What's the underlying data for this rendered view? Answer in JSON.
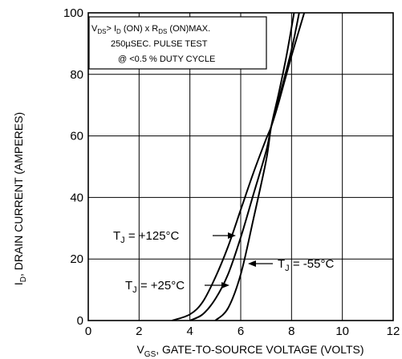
{
  "chart_data": {
    "type": "line",
    "xlabel_main": "V",
    "xlabel_sub": "GS",
    "xlabel_rest": ", GATE-TO-SOURCE VOLTAGE (VOLTS)",
    "ylabel_main": "I",
    "ylabel_sub": "D",
    "ylabel_rest": ", DRAIN CURRENT (AMPERES)",
    "xlim": [
      0,
      12
    ],
    "ylim": [
      0,
      100
    ],
    "x_ticks": [
      0,
      2,
      4,
      6,
      8,
      10,
      12
    ],
    "y_ticks": [
      0,
      20,
      40,
      60,
      80,
      100
    ],
    "x_tick_labels": [
      "0",
      "2",
      "4",
      "6",
      "8",
      "10",
      "12"
    ],
    "y_tick_labels": [
      "0",
      "20",
      "40",
      "60",
      "80",
      "100"
    ],
    "grid": true,
    "conditions": {
      "line1_a": "V",
      "line1_a_sub": "DS",
      "line1_b": "> I",
      "line1_b_sub": "D",
      "line1_c": " (ON) x  R",
      "line1_c_sub": "DS",
      "line1_d": " (ON)MAX.",
      "line2": "250µSEC.  PULSE  TEST",
      "line3": "@  <0.5 %  DUTY  CYCLE"
    },
    "series": [
      {
        "label_main": "T",
        "label_sub": "J",
        "label_rest": " = +125°C",
        "points": [
          [
            3.3,
            0
          ],
          [
            4.0,
            2
          ],
          [
            4.5,
            6
          ],
          [
            5.0,
            14
          ],
          [
            5.5,
            24
          ],
          [
            6.0,
            36
          ],
          [
            6.5,
            48
          ],
          [
            7.0,
            59
          ],
          [
            7.2,
            63
          ],
          [
            7.5,
            71
          ],
          [
            8.0,
            86
          ],
          [
            8.5,
            100
          ]
        ]
      },
      {
        "label_main": "T",
        "label_sub": "J",
        "label_rest": " = +25°C",
        "points": [
          [
            4.0,
            0
          ],
          [
            4.5,
            2
          ],
          [
            5.0,
            7
          ],
          [
            5.5,
            15
          ],
          [
            6.0,
            27
          ],
          [
            6.5,
            41
          ],
          [
            7.0,
            55
          ],
          [
            7.2,
            63
          ],
          [
            7.5,
            72
          ],
          [
            8.0,
            88
          ],
          [
            8.3,
            100
          ]
        ]
      },
      {
        "label_main": "T",
        "label_sub": "J",
        "label_rest": " = -55°C",
        "points": [
          [
            5.0,
            0
          ],
          [
            5.5,
            4
          ],
          [
            6.0,
            15
          ],
          [
            6.5,
            33
          ],
          [
            7.0,
            52
          ],
          [
            7.2,
            63
          ],
          [
            7.5,
            74
          ],
          [
            7.8,
            86
          ],
          [
            8.1,
            100
          ]
        ]
      }
    ]
  }
}
